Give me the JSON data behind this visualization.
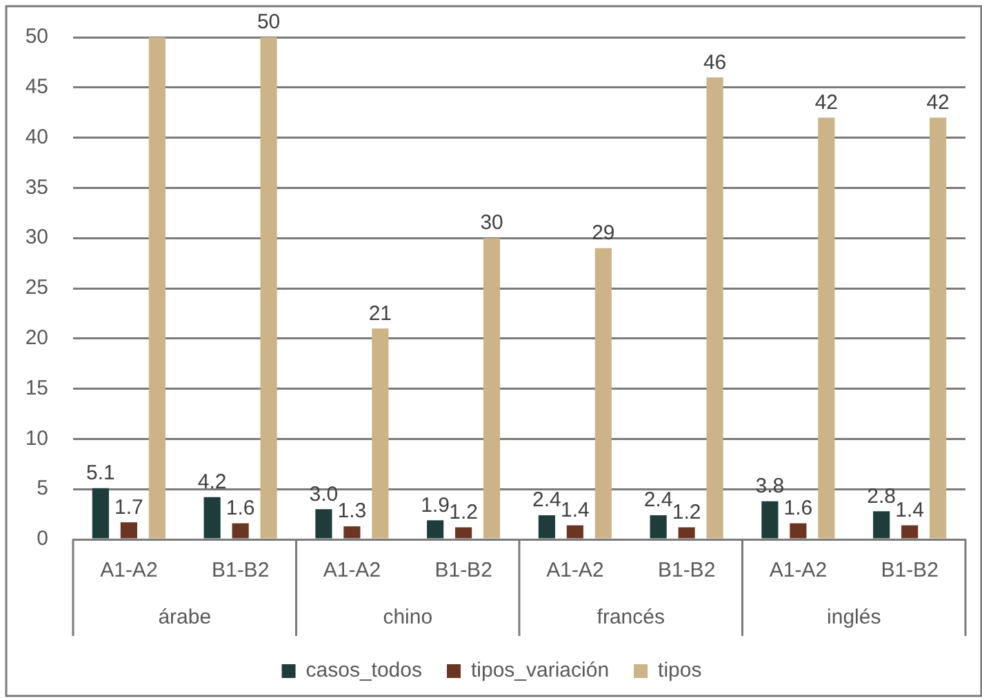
{
  "chart_data": {
    "type": "bar",
    "categories": [
      "A1-A2",
      "B1-B2",
      "A1-A2",
      "B1-B2",
      "A1-A2",
      "B1-B2",
      "A1-A2",
      "B1-B2"
    ],
    "annotations": [
      "árabe",
      "chino",
      "francés",
      "inglés"
    ],
    "series": [
      {
        "name": "casos_todos",
        "color": "#1e3d3a",
        "values": [
          5.1,
          4.2,
          3.0,
          1.9,
          2.4,
          2.4,
          3.8,
          2.8
        ],
        "value_labels": [
          "5.1",
          "4.2",
          "3.0",
          "1.9",
          "2.4",
          "2.4",
          "3.8",
          "2.8"
        ]
      },
      {
        "name": "tipos_variación",
        "color": "#6b3524",
        "values": [
          1.7,
          1.6,
          1.3,
          1.2,
          1.4,
          1.2,
          1.6,
          1.4
        ],
        "value_labels": [
          "1.7",
          "1.6",
          "1.3",
          "1.2",
          "1.4",
          "1.2",
          "1.6",
          "1.4"
        ]
      },
      {
        "name": "tipos",
        "color": "#cdb488",
        "values": [
          50,
          50,
          21,
          30,
          29,
          46,
          42,
          42
        ],
        "value_labels": [
          null,
          "50",
          "21",
          "30",
          "29",
          "46",
          "42",
          "42"
        ]
      }
    ],
    "ylim": [
      0,
      50
    ],
    "yticks": [
      0,
      5,
      10,
      15,
      20,
      25,
      30,
      35,
      40,
      45,
      50
    ],
    "grid": "y",
    "legend": "bottom"
  }
}
